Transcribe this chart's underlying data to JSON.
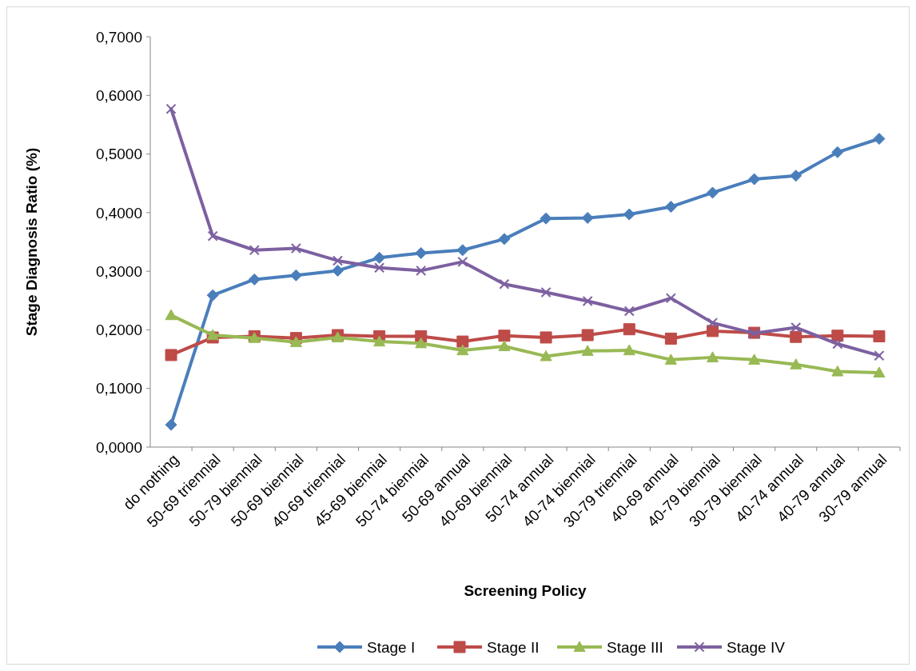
{
  "chart_data": {
    "type": "line",
    "xlabel": "Screening Policy",
    "ylabel": "Stage Diagnosis Ratio (%)",
    "categories": [
      "do nothing",
      "50-69 triennial",
      "50-79 biennial",
      "50-69 biennial",
      "40-69 triennial",
      "45-69 biennial",
      "50-74 biennial",
      "50-69 annual",
      "40-69 biennial",
      "50-74 annual",
      "40-74 biennial",
      "30-79 triennial",
      "40-69 annual",
      "40-79 biennial",
      "30-79 biennial",
      "40-74 annual",
      "40-79 annual",
      "30-79 annual"
    ],
    "ylim": [
      0,
      0.7
    ],
    "yticks": [
      {
        "value": 0,
        "label": "0,0000"
      },
      {
        "value": 0.1,
        "label": "0,1000"
      },
      {
        "value": 0.2,
        "label": "0,2000"
      },
      {
        "value": 0.3,
        "label": "0,3000"
      },
      {
        "value": 0.4,
        "label": "0,4000"
      },
      {
        "value": 0.5,
        "label": "0,5000"
      },
      {
        "value": 0.6,
        "label": "0,6000"
      },
      {
        "value": 0.7,
        "label": "0,7000"
      }
    ],
    "grid": false,
    "legend": "bottom",
    "series": [
      {
        "name": "Stage I",
        "color": "#4a7ebb",
        "marker": "diamond",
        "values": [
          0.038,
          0.259,
          0.286,
          0.293,
          0.301,
          0.323,
          0.331,
          0.336,
          0.355,
          0.39,
          0.391,
          0.397,
          0.41,
          0.434,
          0.457,
          0.463,
          0.503,
          0.526
        ]
      },
      {
        "name": "Stage II",
        "color": "#be4b48",
        "marker": "square",
        "values": [
          0.157,
          0.187,
          0.189,
          0.186,
          0.191,
          0.189,
          0.189,
          0.18,
          0.19,
          0.187,
          0.191,
          0.201,
          0.185,
          0.198,
          0.195,
          0.188,
          0.19,
          0.189
        ]
      },
      {
        "name": "Stage III",
        "color": "#98b954",
        "marker": "triangle",
        "values": [
          0.225,
          0.191,
          0.186,
          0.179,
          0.187,
          0.18,
          0.177,
          0.165,
          0.172,
          0.155,
          0.164,
          0.165,
          0.149,
          0.153,
          0.149,
          0.141,
          0.129,
          0.127
        ]
      },
      {
        "name": "Stage IV",
        "color": "#7d60a0",
        "marker": "cross",
        "values": [
          0.577,
          0.36,
          0.336,
          0.339,
          0.318,
          0.306,
          0.301,
          0.316,
          0.278,
          0.264,
          0.249,
          0.232,
          0.254,
          0.212,
          0.194,
          0.204,
          0.176,
          0.156
        ]
      }
    ]
  }
}
